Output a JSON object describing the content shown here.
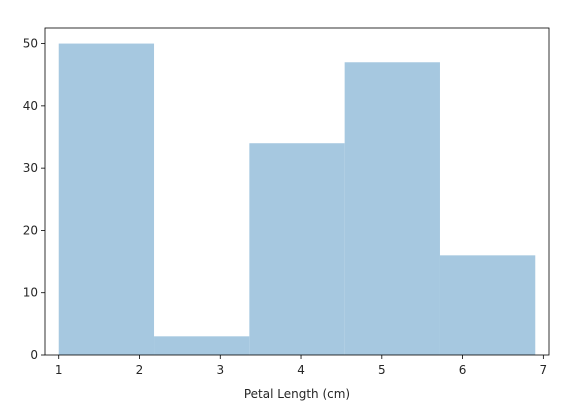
{
  "chart_data": {
    "type": "bar",
    "title": "",
    "xlabel": "Petal Length (cm)",
    "ylabel": "",
    "bins": [
      {
        "x0": 1.0,
        "x1": 2.18,
        "count": 50
      },
      {
        "x0": 2.18,
        "x1": 3.36,
        "count": 3
      },
      {
        "x0": 3.36,
        "x1": 4.54,
        "count": 34
      },
      {
        "x0": 4.54,
        "x1": 5.72,
        "count": 47
      },
      {
        "x0": 5.72,
        "x1": 6.9,
        "count": 16
      }
    ],
    "xlim": [
      0.83,
      7.07
    ],
    "ylim": [
      0,
      52.5
    ],
    "xticks": [
      1,
      2,
      3,
      4,
      5,
      6,
      7
    ],
    "yticks": [
      0,
      10,
      20,
      30,
      40,
      50
    ],
    "bar_color": "#a6c8e0",
    "grid": false,
    "legend": "none"
  }
}
